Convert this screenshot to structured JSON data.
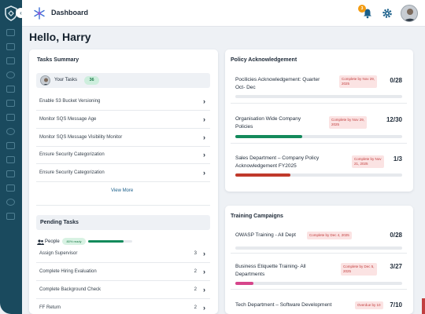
{
  "header": {
    "title": "Dashboard",
    "notification_count": "3"
  },
  "greeting": "Hello, Harry",
  "tasks_summary": {
    "title": "Tasks Summary",
    "your_tasks_label": "Your Tasks",
    "your_tasks_count": "36",
    "items": [
      "Enable S3 Bucket Versioning",
      "Monitor SQS Message Age",
      "Monitor SQS Message Visibility Monitor",
      "Ensure Security Categorization",
      "Ensure Security Categorization"
    ],
    "view_more": "View More"
  },
  "pending_tasks": {
    "title": "Pending Tasks",
    "people_label": "People",
    "ready_label": "80% ready",
    "ready_fraction": 0.8,
    "items": [
      {
        "label": "Assign Supervisor",
        "count": "3"
      },
      {
        "label": "Complete Hiring Evaluation",
        "count": "2"
      },
      {
        "label": "Complete Background Check",
        "count": "2"
      },
      {
        "label": "FF Return",
        "count": "2"
      }
    ]
  },
  "policy": {
    "title": "Policy Acknowledgement",
    "items": [
      {
        "name_lines": [
          "Pocilicies Acknowledgement: Quarter",
          "Oct- Dec"
        ],
        "due_lines": [
          "Complete by Nov 29,",
          "2025"
        ],
        "count": "0/28",
        "progress": 0.0,
        "color": "#bbbbbb"
      },
      {
        "name_lines": [
          "Organisation Wide Company",
          "Policies"
        ],
        "due_lines": [
          "Complete by Nov 29,",
          "2025"
        ],
        "count": "12/30",
        "progress": 0.4,
        "color": "#138a5b"
      },
      {
        "name_lines": [
          "Sales Department – Company Policy",
          "Acknowledgement FY2025"
        ],
        "due_lines": [
          "Complete by Nov",
          "21, 2025"
        ],
        "count": "1/3",
        "progress": 0.33,
        "color": "#c0392b"
      }
    ]
  },
  "training": {
    "title": "Training Campaigns",
    "items": [
      {
        "name_lines": [
          "OWASP Training - All Dept"
        ],
        "due_lines": [
          "Complete by Dec 4, 2025"
        ],
        "count": "0/28",
        "progress": 0.0,
        "color": "#bbbbbb"
      },
      {
        "name_lines": [
          "Business Etiquette Training- All",
          "Departments"
        ],
        "due_lines": [
          "Complete by Dec 5,",
          "2025"
        ],
        "count": "3/27",
        "progress": 0.11,
        "color": "#d6458b"
      },
      {
        "name_lines": [
          "Tech Department – Software Development"
        ],
        "due_lines": [
          "Overdue by 10"
        ],
        "count": "7/10",
        "progress": 0.7,
        "color": "#c0392b"
      }
    ]
  },
  "colors": {
    "sidebar": "#1a4a5e",
    "accent_green": "#138a5b",
    "accent_red": "#c0392b",
    "accent_pink": "#d6458b"
  }
}
